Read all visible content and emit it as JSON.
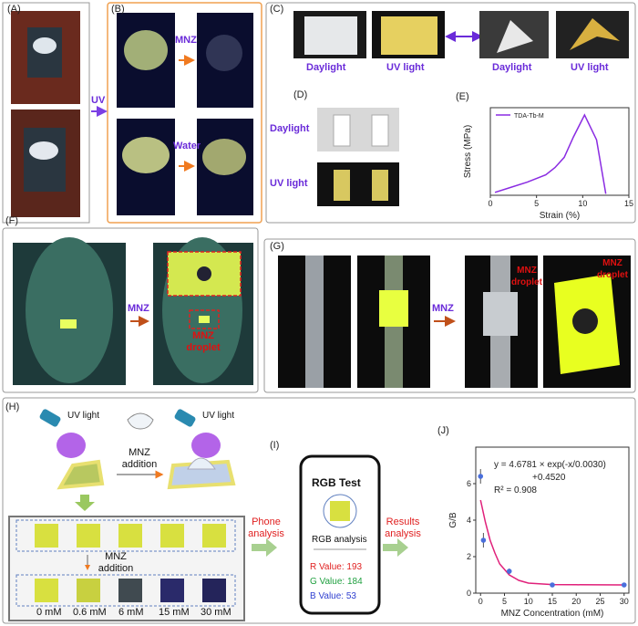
{
  "panel_labels": [
    "(A)",
    "(B)",
    "(C)",
    "(D)",
    "(E)",
    "(F)",
    "(G)",
    "(H)",
    "(I)",
    "(J)"
  ],
  "ab": {
    "uv": "UV",
    "mnz": "MNZ",
    "water": "Water"
  },
  "c": {
    "labels": [
      "Daylight",
      "UV light",
      "Daylight",
      "UV light"
    ]
  },
  "d": {
    "labels": [
      "Daylight",
      "UV light"
    ]
  },
  "f": {
    "reagent": "MNZ",
    "droplet": "MNZ droplet"
  },
  "g": {
    "reagent": "MNZ",
    "droplets": [
      "MNZ droplet",
      "MNZ droplet"
    ]
  },
  "h": {
    "lamps": [
      "UV light",
      "UV light"
    ],
    "steps": [
      "MNZ addition",
      "MNZ addition"
    ],
    "concentrations": [
      "0 mM",
      "0.6 mM",
      "6 mM",
      "15 mM",
      "30 mM"
    ],
    "phone_analysis": "Phone analysis",
    "results_analysis": "Results analysis"
  },
  "i": {
    "title": "RGB Test",
    "subtitle": "RGB analysis",
    "values": [
      "R Value: 193",
      "G Value: 184",
      "B Value: 53"
    ]
  },
  "chart_data": [
    {
      "type": "line",
      "xlabel": "Strain (%)",
      "ylabel": "Stress (MPa)",
      "x": [
        0.5,
        2,
        4,
        6,
        7,
        8,
        9,
        10.2,
        11.5,
        12.5
      ],
      "series": [
        {
          "name": "TDA-Tb-M",
          "color": "#8a2be2",
          "values": [
            0.2,
            0.5,
            0.9,
            1.4,
            1.9,
            2.6,
            4.0,
            5.5,
            3.8,
            0.1
          ]
        }
      ],
      "xlim": [
        0,
        15
      ],
      "xticks": [
        0,
        5,
        10,
        15
      ],
      "ylim": [
        0,
        6
      ],
      "legend": "upper left"
    },
    {
      "type": "scatter",
      "xlabel": "MNZ Concentration (mM)",
      "ylabel": "G/B",
      "x": [
        0,
        0.6,
        6,
        15,
        30
      ],
      "series": [
        {
          "color": "#4a6fdc",
          "values": [
            6.4,
            2.9,
            1.2,
            0.45,
            0.45
          ],
          "errors": [
            0.4,
            0.4,
            0.15,
            0.05,
            0.05
          ]
        }
      ],
      "fit": {
        "color": "#e0207a",
        "x": [
          0,
          1,
          2,
          3,
          4,
          6,
          8,
          10,
          15,
          20,
          30
        ],
        "values": [
          5.1,
          3.9,
          2.9,
          2.2,
          1.6,
          1.0,
          0.7,
          0.55,
          0.47,
          0.46,
          0.45
        ]
      },
      "xlim": [
        -1,
        31
      ],
      "xticks": [
        0,
        5,
        10,
        15,
        20,
        25,
        30
      ],
      "ylim": [
        0,
        8
      ],
      "yticks": [
        0,
        2,
        4,
        6
      ],
      "annotations": [
        "y = 4.6781 × exp(-x/0.0030)",
        "+0.4520",
        "R² = 0.908"
      ]
    }
  ]
}
